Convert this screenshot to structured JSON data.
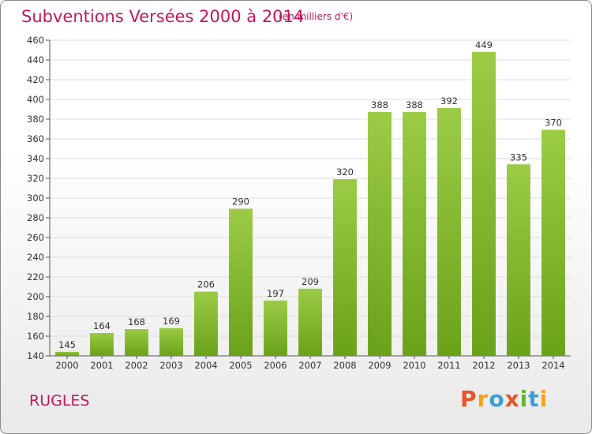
{
  "chart_data": {
    "type": "bar",
    "title": "Subventions Versées 2000 à 2014",
    "subtitle": "(en milliers d'€)",
    "categories": [
      "2000",
      "2001",
      "2002",
      "2003",
      "2004",
      "2005",
      "2006",
      "2007",
      "2008",
      "2009",
      "2010",
      "2011",
      "2012",
      "2013",
      "2014"
    ],
    "values": [
      145,
      164,
      168,
      169,
      206,
      290,
      197,
      209,
      320,
      388,
      388,
      392,
      449,
      335,
      370
    ],
    "ylim": [
      140,
      460
    ],
    "ytick_step": 20,
    "grid": true,
    "bar_color_top": "#9ccc45",
    "bar_color_bottom": "#6aa21a"
  },
  "footer": {
    "commune": "RUGLES",
    "brand": "Proxiti",
    "brand_colors": [
      "#e8542a",
      "#f2a31b",
      "#3a9fd6",
      "#e8542a",
      "#66b32e",
      "#3a9fd6",
      "#f2a31b"
    ]
  },
  "colors": {
    "accent": "#c2185b"
  }
}
